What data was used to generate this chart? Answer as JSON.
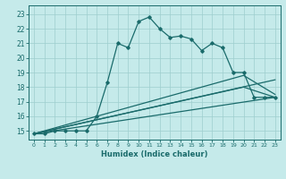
{
  "xlabel": "Humidex (Indice chaleur)",
  "x_ticks": [
    0,
    1,
    2,
    3,
    4,
    5,
    6,
    7,
    8,
    9,
    10,
    11,
    12,
    13,
    14,
    15,
    16,
    17,
    18,
    19,
    20,
    21,
    22,
    23
  ],
  "y_ticks": [
    15,
    16,
    17,
    18,
    19,
    20,
    21,
    22,
    23
  ],
  "xlim": [
    -0.5,
    23.5
  ],
  "ylim": [
    14.4,
    23.6
  ],
  "bg_color": "#c5eaea",
  "line_color": "#1a6b6b",
  "grid_color": "#9ecece",
  "curve1_x": [
    0,
    1,
    2,
    3,
    4,
    5,
    6,
    7,
    8,
    9,
    10,
    11,
    12,
    13,
    14,
    15,
    16,
    17,
    18,
    19,
    20,
    21,
    22,
    23
  ],
  "curve1_y": [
    14.8,
    14.8,
    15.0,
    15.0,
    15.0,
    15.0,
    16.0,
    18.3,
    21.0,
    20.7,
    22.5,
    22.8,
    22.0,
    21.4,
    21.5,
    21.3,
    20.5,
    21.0,
    20.7,
    19.0,
    19.0,
    17.3,
    17.3,
    17.3
  ],
  "curve2_x": [
    0,
    23
  ],
  "curve2_y": [
    14.8,
    18.5
  ],
  "curve3_x": [
    0,
    20,
    23
  ],
  "curve3_y": [
    14.8,
    18.8,
    17.5
  ],
  "curve4_x": [
    0,
    20,
    23
  ],
  "curve4_y": [
    14.8,
    18.0,
    17.3
  ],
  "curve5_x": [
    0,
    23
  ],
  "curve5_y": [
    14.8,
    17.3
  ]
}
